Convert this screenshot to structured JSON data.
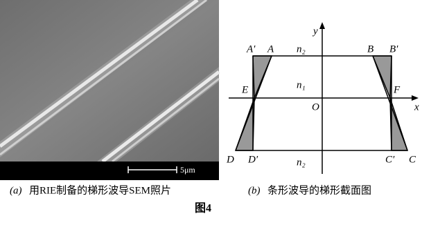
{
  "panel_a": {
    "scale_label": "5μm",
    "caption_prefix": "(a)",
    "caption": "用RIE制备的梯形波导SEM照片"
  },
  "panel_b": {
    "labels": {
      "A_prime": "A′",
      "A": "A",
      "B": "B",
      "B_prime": "B′",
      "n2_top": "n₂",
      "y": "y",
      "n1": "n₁",
      "E": "E",
      "F": "F",
      "O": "O",
      "x": "x",
      "D": "D",
      "D_prime": "D′",
      "n2_bottom": "n₂",
      "C_prime": "C′",
      "C": "C"
    },
    "caption_prefix": "(b)",
    "caption": "条形波导的梯形截面图"
  },
  "figure_label": "图4"
}
